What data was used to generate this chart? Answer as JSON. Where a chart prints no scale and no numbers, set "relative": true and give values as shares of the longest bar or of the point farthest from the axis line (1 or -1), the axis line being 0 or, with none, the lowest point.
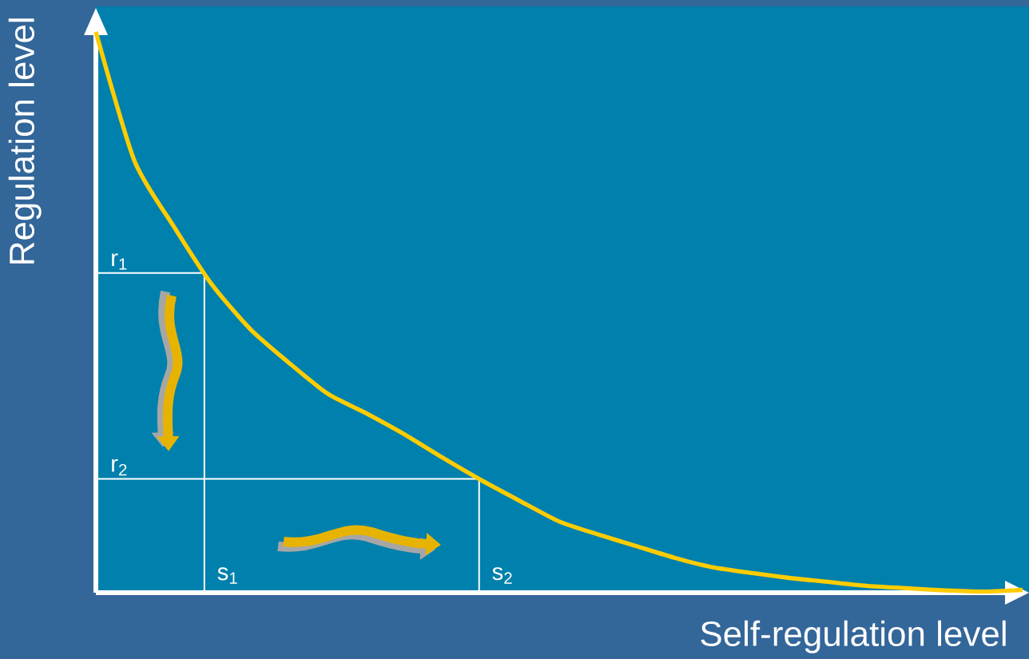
{
  "chart_data": {
    "type": "line",
    "relative": true,
    "xlabel": "Self-regulation level",
    "ylabel": "Regulation level",
    "categories": [
      null,
      null,
      null,
      null,
      null,
      null,
      null,
      null,
      null,
      null,
      null,
      null,
      null,
      null,
      null,
      null,
      null,
      null,
      null,
      null,
      null,
      null,
      null,
      null,
      null
    ],
    "series": [
      {
        "color": "#ffcc00",
        "values": [
          1,
          0.77,
          0.655,
          0.55,
          0.47,
          0.41,
          0.355,
          0.32,
          0.282,
          0.24,
          0.2,
          0.163,
          0.127,
          0.104,
          0.083,
          0.062,
          0.045,
          0.035,
          0.026,
          0.019,
          0.012,
          0.008,
          0.004,
          0.002,
          0.005
        ]
      }
    ],
    "ref_lines": [
      {
        "axis": "y",
        "value": 0.57,
        "label": "r$_{1}$",
        "color": "#ffffff"
      },
      {
        "axis": "y",
        "value": 0.203,
        "label": "r$_{2}$",
        "color": "#ffffff"
      }
    ],
    "annotations": [
      "s$_{1}$",
      "s$_{2}$"
    ],
    "marker": "none",
    "line_style": "solid"
  }
}
